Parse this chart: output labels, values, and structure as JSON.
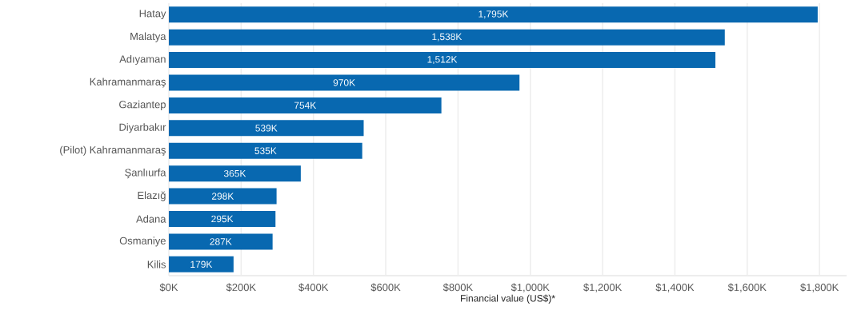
{
  "chart_data": {
    "type": "bar",
    "orientation": "horizontal",
    "xlabel": "Financial value (US$)*",
    "categories": [
      "Hatay",
      "Malatya",
      "Adıyaman",
      "Kahramanmaraş",
      "Gaziantep",
      "Diyarbakır",
      "(Pilot) Kahramanmaraş",
      "Şanlıurfa",
      "Elazığ",
      "Adana",
      "Osmaniye",
      "Kilis"
    ],
    "values": [
      1795,
      1538,
      1512,
      970,
      754,
      539,
      535,
      365,
      298,
      295,
      287,
      179
    ],
    "value_labels": [
      "1,795K",
      "1,538K",
      "1,512K",
      "970K",
      "754K",
      "539K",
      "535K",
      "365K",
      "298K",
      "295K",
      "287K",
      "179K"
    ],
    "color": "#0868b0",
    "xlim": [
      0,
      1875
    ],
    "xticks": [
      {
        "value": 0,
        "label": "$0K"
      },
      {
        "value": 200,
        "label": "$200K"
      },
      {
        "value": 400,
        "label": "$400K"
      },
      {
        "value": 600,
        "label": "$600K"
      },
      {
        "value": 800,
        "label": "$800K"
      },
      {
        "value": 1000,
        "label": "$1,000K"
      },
      {
        "value": 1200,
        "label": "$1,200K"
      },
      {
        "value": 1400,
        "label": "$1,400K"
      },
      {
        "value": 1600,
        "label": "$1,600K"
      },
      {
        "value": 1800,
        "label": "$1,800K"
      }
    ],
    "grid": "x"
  }
}
